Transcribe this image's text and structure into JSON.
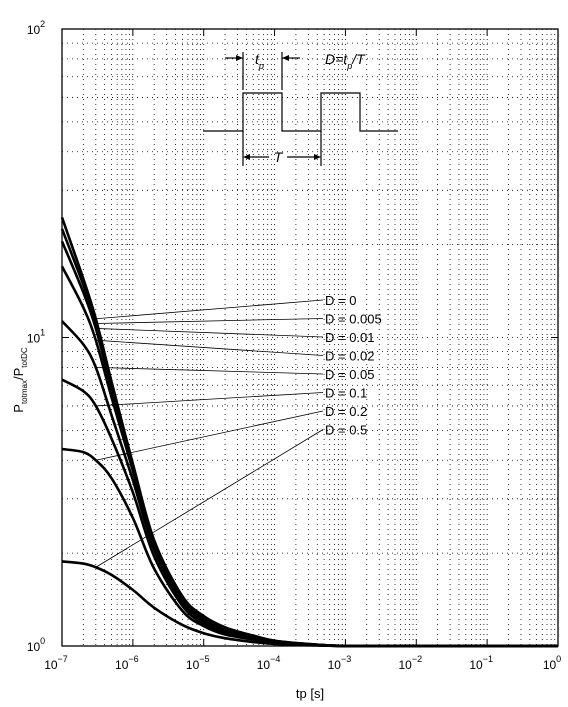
{
  "chart_data": {
    "type": "line",
    "title": "",
    "xlabel": "tp [s]",
    "ylabel": {
      "base": "P",
      "sub1": "totmax",
      "mid": "/P",
      "sub2": "totDC"
    },
    "x_scale": "log",
    "y_scale": "log",
    "xlim": [
      1e-07,
      1
    ],
    "ylim": [
      1,
      100
    ],
    "grid": true,
    "x_ticks": [
      {
        "base": "10",
        "exp": "−7"
      },
      {
        "base": "10",
        "exp": "−6"
      },
      {
        "base": "10",
        "exp": "−5"
      },
      {
        "base": "10",
        "exp": "−4"
      },
      {
        "base": "10",
        "exp": "−3"
      },
      {
        "base": "10",
        "exp": "−2"
      },
      {
        "base": "10",
        "exp": "−1"
      },
      {
        "base": "10",
        "exp": "0"
      }
    ],
    "y_ticks": [
      {
        "base": "10",
        "exp": "0"
      },
      {
        "base": "10",
        "exp": "1"
      },
      {
        "base": "10",
        "exp": "2"
      }
    ],
    "series": [
      {
        "name": "D = 0",
        "x": [
          1e-07,
          2e-07,
          3e-07,
          5e-07,
          1e-06,
          2e-06,
          5e-06,
          1e-05,
          2e-05,
          5e-05,
          0.0001,
          0.0003,
          0.001,
          0.01,
          1
        ],
        "y": [
          24.5,
          15.5,
          11.5,
          7.2,
          3.9,
          2.2,
          1.45,
          1.25,
          1.15,
          1.08,
          1.04,
          1.015,
          1.0,
          1.0,
          1.0
        ]
      },
      {
        "name": "D = 0.005",
        "x": [
          1e-07,
          2e-07,
          3e-07,
          5e-07,
          1e-06,
          2e-06,
          5e-06,
          1e-05,
          2e-05,
          5e-05,
          0.0001,
          0.0003,
          0.001,
          0.01,
          1
        ],
        "y": [
          22.5,
          14.8,
          11.1,
          7.0,
          3.85,
          2.18,
          1.44,
          1.24,
          1.14,
          1.08,
          1.04,
          1.015,
          1.0,
          1.0,
          1.0
        ]
      },
      {
        "name": "D = 0.01",
        "x": [
          1e-07,
          2e-07,
          3e-07,
          5e-07,
          1e-06,
          2e-06,
          5e-06,
          1e-05,
          2e-05,
          5e-05,
          0.0001,
          0.0003,
          0.001,
          0.01,
          1
        ],
        "y": [
          20.5,
          14.0,
          10.7,
          6.8,
          3.8,
          2.15,
          1.43,
          1.23,
          1.14,
          1.07,
          1.035,
          1.012,
          1.0,
          1.0,
          1.0
        ]
      },
      {
        "name": "D = 0.02",
        "x": [
          1e-07,
          2e-07,
          3e-07,
          5e-07,
          1e-06,
          2e-06,
          5e-06,
          1e-05,
          2e-05,
          5e-05,
          0.0001,
          0.0003,
          0.001,
          0.01,
          1
        ],
        "y": [
          17.0,
          12.5,
          9.8,
          6.4,
          3.7,
          2.1,
          1.41,
          1.22,
          1.13,
          1.07,
          1.035,
          1.012,
          1.0,
          1.0,
          1.0
        ]
      },
      {
        "name": "D = 0.05",
        "x": [
          1e-07,
          2e-07,
          3e-07,
          5e-07,
          1e-06,
          2e-06,
          5e-06,
          1e-05,
          2e-05,
          5e-05,
          0.0001,
          0.0003,
          0.001,
          0.01,
          1
        ],
        "y": [
          11.3,
          9.5,
          8.0,
          5.6,
          3.45,
          2.05,
          1.38,
          1.2,
          1.12,
          1.06,
          1.03,
          1.01,
          1.0,
          1.0,
          1.0
        ]
      },
      {
        "name": "D = 0.1",
        "x": [
          1e-07,
          2e-07,
          3e-07,
          5e-07,
          1e-06,
          2e-06,
          5e-06,
          1e-05,
          2e-05,
          5e-05,
          0.0001,
          0.0003,
          0.001,
          0.01,
          1
        ],
        "y": [
          7.3,
          6.7,
          6.0,
          4.7,
          3.15,
          1.95,
          1.35,
          1.18,
          1.1,
          1.05,
          1.025,
          1.01,
          1.0,
          1.0,
          1.0
        ]
      },
      {
        "name": "D = 0.2",
        "x": [
          1e-07,
          2e-07,
          3e-07,
          5e-07,
          1e-06,
          2e-06,
          5e-06,
          1e-05,
          2e-05,
          5e-05,
          0.0001,
          0.0003,
          0.001,
          0.01,
          1
        ],
        "y": [
          4.35,
          4.25,
          4.0,
          3.5,
          2.6,
          1.78,
          1.3,
          1.16,
          1.09,
          1.05,
          1.025,
          1.01,
          1.0,
          1.0,
          1.0
        ]
      },
      {
        "name": "D = 0.5",
        "x": [
          1e-07,
          2e-07,
          3e-07,
          5e-07,
          1e-06,
          2e-06,
          5e-06,
          1e-05,
          2e-05,
          5e-05,
          0.0001,
          0.0003,
          0.001,
          0.01,
          1
        ],
        "y": [
          1.88,
          1.85,
          1.8,
          1.7,
          1.52,
          1.33,
          1.17,
          1.1,
          1.06,
          1.03,
          1.015,
          1.005,
          1.0,
          1.0,
          1.0
        ]
      }
    ],
    "inset": {
      "tp_label": {
        "base": "t",
        "sub": "p"
      },
      "t_label": "T",
      "formula": {
        "lead": "D=t",
        "sub": "p",
        "tail": "/T"
      }
    }
  }
}
